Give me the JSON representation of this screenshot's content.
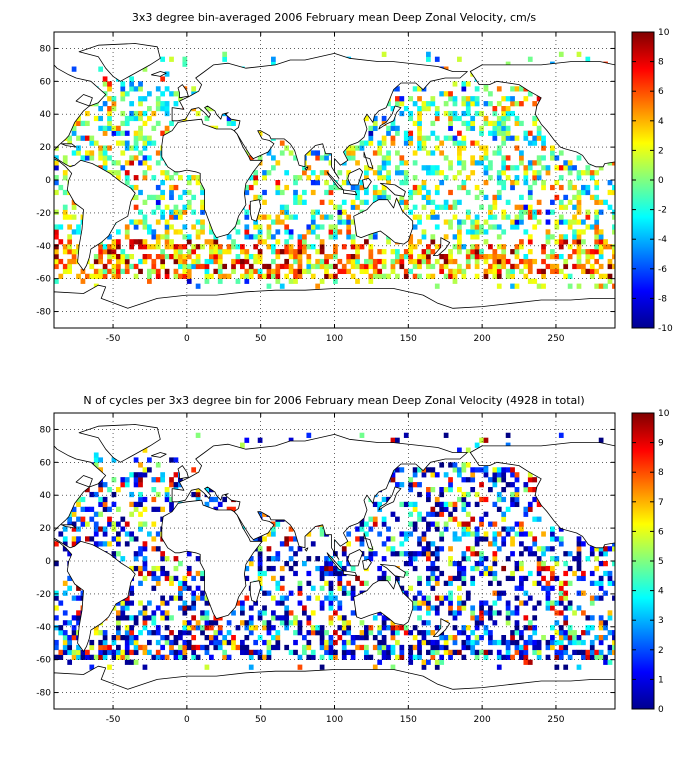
{
  "chart_data": [
    {
      "type": "heatmap",
      "title": "3x3 degree bin-averaged 2006 February mean Deep Zonal Velocity, cm/s",
      "xlim": [
        -90,
        290
      ],
      "ylim": [
        -90,
        90
      ],
      "xticks": [
        -50,
        0,
        50,
        100,
        150,
        200,
        250
      ],
      "yticks": [
        80,
        60,
        40,
        20,
        0,
        -20,
        -40,
        -60,
        -80
      ],
      "grid": true,
      "bin_size_deg": 3,
      "colorbar": {
        "min": -10,
        "max": 10,
        "ticks": [
          10,
          8,
          6,
          4,
          2,
          0,
          -2,
          -4,
          -6,
          -8,
          -10
        ],
        "colormap": "jet",
        "placement": "right"
      }
    },
    {
      "type": "heatmap",
      "title": "N of cycles per 3x3 degree bin for 2006 February mean Deep Zonal Velocity (4928 in total)",
      "total_cycles": 4928,
      "xlim": [
        -90,
        290
      ],
      "ylim": [
        -90,
        90
      ],
      "xticks": [
        -50,
        0,
        50,
        100,
        150,
        200,
        250
      ],
      "yticks": [
        80,
        60,
        40,
        20,
        0,
        -20,
        -40,
        -60,
        -80
      ],
      "grid": true,
      "bin_size_deg": 3,
      "colorbar": {
        "min": 0,
        "max": 10,
        "ticks": [
          10,
          9,
          8,
          7,
          6,
          5,
          4,
          3,
          2,
          1,
          0
        ],
        "colormap": "jet",
        "placement": "right"
      }
    }
  ]
}
